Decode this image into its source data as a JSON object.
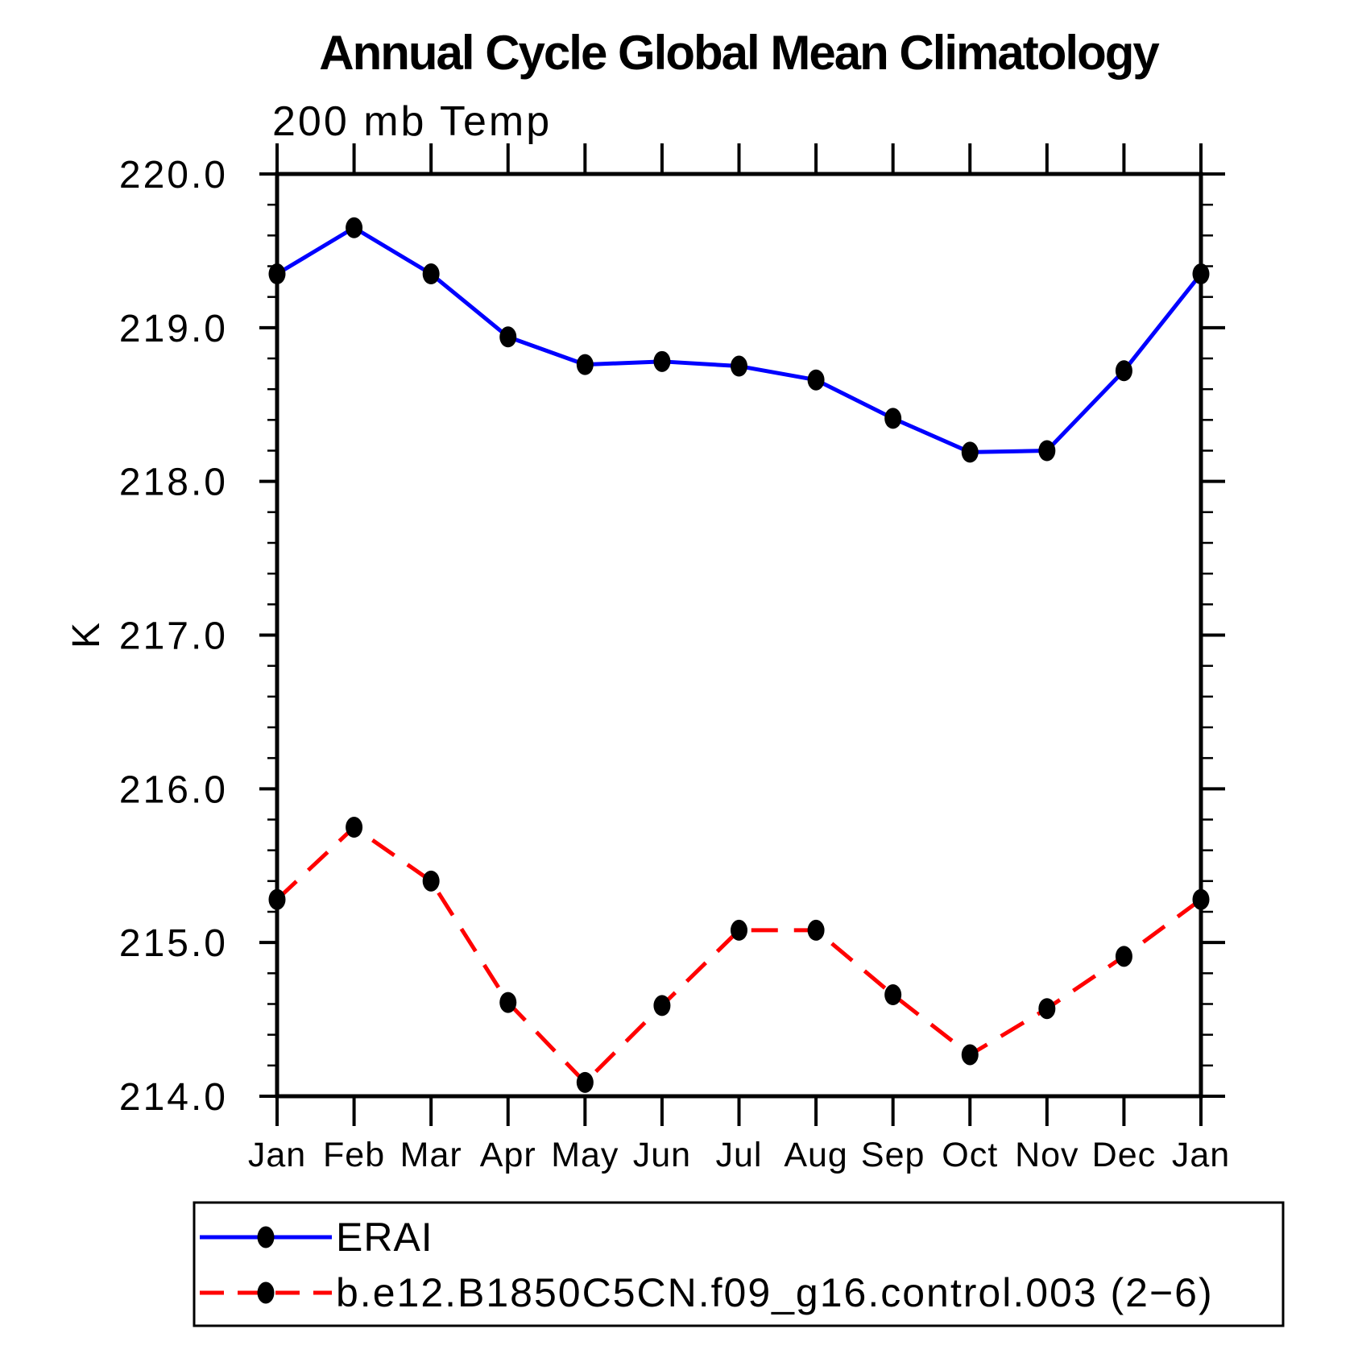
{
  "title": "Annual Cycle Global Mean Climatology",
  "chart_data": {
    "type": "line",
    "subtitle": "200 mb Temp",
    "ylabel": "K",
    "ylim": [
      214.0,
      220.0
    ],
    "ytick_interval": 1.0,
    "yminor_interval": 0.2,
    "ytick_labels": [
      "220.0",
      "219.0",
      "218.0",
      "217.0",
      "216.0",
      "215.0",
      "214.0"
    ],
    "categories": [
      "Jan",
      "Feb",
      "Mar",
      "Apr",
      "May",
      "Jun",
      "Jul",
      "Aug",
      "Sep",
      "Oct",
      "Nov",
      "Dec",
      "Jan"
    ],
    "series": [
      {
        "name": "ERAI",
        "color": "#0000ff",
        "line_style": "solid",
        "marker": "filled-circle",
        "marker_color": "#000000",
        "values": [
          219.35,
          219.65,
          219.35,
          218.94,
          218.76,
          218.78,
          218.75,
          218.66,
          218.41,
          218.19,
          218.2,
          218.72,
          219.35
        ]
      },
      {
        "name": "b.e12.B1850C5CN.f09_g16.control.003 (2−6)",
        "color": "#ff0000",
        "line_style": "dashed",
        "marker": "filled-circle",
        "marker_color": "#000000",
        "values": [
          215.28,
          215.75,
          215.4,
          214.61,
          214.09,
          214.59,
          215.08,
          215.08,
          214.66,
          214.27,
          214.57,
          214.91,
          215.28
        ]
      }
    ],
    "grid": false,
    "legend_position": "bottom-left",
    "axis_color": "#000000",
    "background_color": "#ffffff"
  }
}
